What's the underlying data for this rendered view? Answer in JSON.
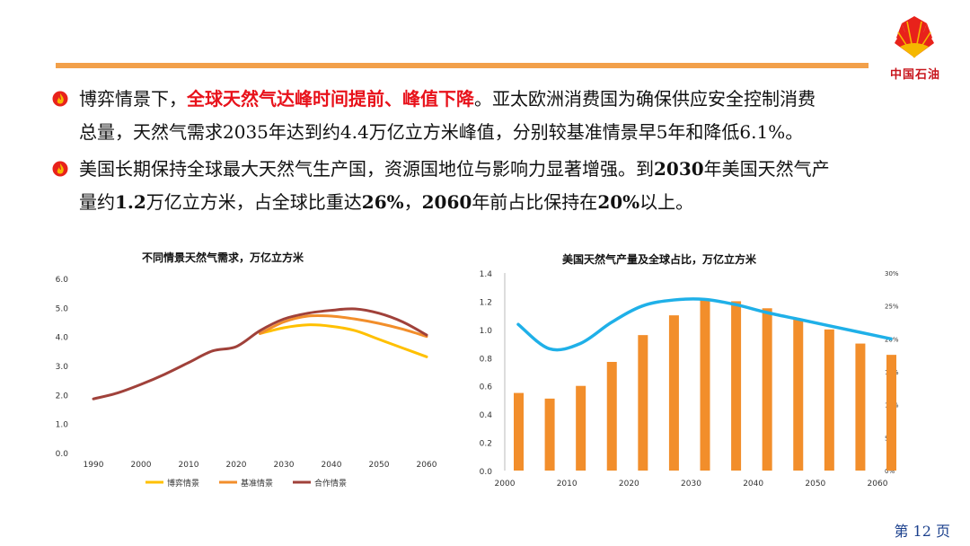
{
  "header": {
    "logo_text": "中国石油",
    "accent_color": "#f2a04a",
    "logo_red": "#e8221b",
    "logo_yellow": "#f5b800"
  },
  "bullets": [
    {
      "icon": "flame-bullet-icon",
      "lines": [
        {
          "parts": [
            {
              "text": "博弈情景下，",
              "style": "plain"
            },
            {
              "text": "全球天然气达峰时间提前、峰值下降",
              "style": "red"
            },
            {
              "text": "。亚太欧洲消费国为确保供应安全控制消费",
              "style": "plain"
            }
          ]
        },
        {
          "parts": [
            {
              "text": "总量，天然气需求2035年达到约4.4万亿立方米峰值，分别较基准情景早5年和降低6.1%。",
              "style": "plain"
            }
          ]
        }
      ]
    },
    {
      "icon": "flame-bullet-icon",
      "lines": [
        {
          "parts": [
            {
              "text": "美国长期保持全球最大天然气生产国，资源国地位与影响力显著增强。到",
              "style": "plain"
            },
            {
              "text": "2030",
              "style": "bold"
            },
            {
              "text": "年美国天然气产",
              "style": "plain"
            }
          ]
        },
        {
          "parts": [
            {
              "text": "量约",
              "style": "plain"
            },
            {
              "text": "1.2",
              "style": "bold"
            },
            {
              "text": "万亿立方米，占全球比重达",
              "style": "plain"
            },
            {
              "text": "26%",
              "style": "bold"
            },
            {
              "text": "，",
              "style": "plain"
            },
            {
              "text": "2060",
              "style": "bold"
            },
            {
              "text": "年前占比保持在",
              "style": "plain"
            },
            {
              "text": "20%",
              "style": "bold"
            },
            {
              "text": "以上。",
              "style": "plain"
            }
          ]
        }
      ]
    }
  ],
  "page_number": "第 12 页",
  "chart_data": [
    {
      "type": "line",
      "title": "不同情景天然气需求，万亿立方米",
      "x": [
        1990,
        1995,
        2000,
        2005,
        2010,
        2015,
        2020,
        2025,
        2030,
        2035,
        2040,
        2045,
        2050,
        2055,
        2060
      ],
      "x_ticks": [
        "1990",
        "2000",
        "2010",
        "2020",
        "2030",
        "2040",
        "2050",
        "2060"
      ],
      "y_ticks": [
        "0.0",
        "1.0",
        "2.0",
        "3.0",
        "4.0",
        "5.0",
        "6.0"
      ],
      "ylim": [
        0,
        6
      ],
      "grid": false,
      "legend_position": "bottom",
      "series": [
        {
          "name": "博弈情景",
          "color": "#ffc000",
          "values": [
            null,
            null,
            null,
            null,
            null,
            null,
            null,
            4.1,
            4.3,
            4.4,
            4.35,
            4.2,
            3.9,
            3.6,
            3.3
          ]
        },
        {
          "name": "基准情景",
          "color": "#f28e2b",
          "values": [
            null,
            null,
            null,
            null,
            null,
            null,
            null,
            4.1,
            4.5,
            4.7,
            4.7,
            4.6,
            4.45,
            4.25,
            4.0
          ]
        },
        {
          "name": "合作情景",
          "color": "#a0413a",
          "values": [
            1.85,
            2.05,
            2.35,
            2.7,
            3.1,
            3.5,
            3.65,
            4.2,
            4.6,
            4.8,
            4.9,
            4.95,
            4.8,
            4.5,
            4.05
          ]
        }
      ]
    },
    {
      "type": "bar",
      "title": "美国天然气产量及全球占比，万亿立方米",
      "categories": [
        "2000",
        "2005",
        "2010",
        "2015",
        "2020",
        "2025",
        "2030",
        "2035",
        "2040",
        "2045",
        "2050",
        "2055",
        "2060"
      ],
      "x_ticks": [
        "2000",
        "2010",
        "2020",
        "2030",
        "2040",
        "2050",
        "2060"
      ],
      "bar_values": [
        0.55,
        0.51,
        0.6,
        0.77,
        0.96,
        1.1,
        1.21,
        1.2,
        1.15,
        1.07,
        1.0,
        0.9,
        0.82
      ],
      "bar_color": "#f28e2b",
      "share_percent": [
        22.2,
        18.5,
        19.3,
        22.5,
        25.0,
        25.9,
        26.0,
        25.2,
        24.0,
        23.0,
        22.0,
        21.0,
        20.0
      ],
      "line_color": "#1fb0e8",
      "ylim_left": [
        0,
        1.4
      ],
      "ylim_right": [
        0,
        30
      ],
      "y_left_ticks": [
        "0.0",
        "0.2",
        "0.4",
        "0.6",
        "0.8",
        "1.0",
        "1.2",
        "1.4"
      ],
      "y_right_ticks": [
        "0%",
        "5%",
        "10%",
        "15%",
        "20%",
        "25%",
        "30%"
      ]
    }
  ]
}
